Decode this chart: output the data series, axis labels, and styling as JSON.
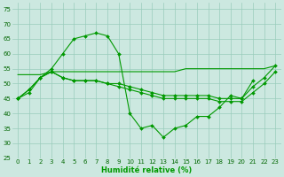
{
  "xlabel": "Humidité relative (%)",
  "background_color": "#cce8e0",
  "grid_color": "#99ccbb",
  "line_color": "#009900",
  "xlim": [
    -0.5,
    23.5
  ],
  "ylim": [
    25,
    77
  ],
  "yticks": [
    25,
    30,
    35,
    40,
    45,
    50,
    55,
    60,
    65,
    70,
    75
  ],
  "xticks": [
    0,
    1,
    2,
    3,
    4,
    5,
    6,
    7,
    8,
    9,
    10,
    11,
    12,
    13,
    14,
    15,
    16,
    17,
    18,
    19,
    20,
    21,
    22,
    23
  ],
  "line_peak_x": [
    0,
    1,
    2,
    3,
    4,
    5,
    6,
    7,
    8,
    9,
    10,
    11,
    12,
    13,
    14,
    15,
    16,
    17,
    18,
    19,
    20,
    21
  ],
  "line_peak_y": [
    45,
    48,
    52,
    55,
    60,
    65,
    66,
    67,
    66,
    60,
    40,
    35,
    36,
    32,
    35,
    36,
    39,
    39,
    42,
    46,
    45,
    51
  ],
  "line_flat_x": [
    0,
    1,
    2,
    3,
    4,
    5,
    6,
    7,
    8,
    9,
    10,
    11,
    12,
    13,
    14,
    15,
    16,
    17,
    18,
    19,
    20,
    21,
    22,
    23
  ],
  "line_flat_y": [
    53,
    53,
    53,
    54,
    54,
    54,
    54,
    54,
    54,
    54,
    54,
    54,
    54,
    54,
    54,
    55,
    55,
    55,
    55,
    55,
    55,
    55,
    55,
    56
  ],
  "line_mid1_x": [
    0,
    1,
    2,
    3,
    4,
    5,
    6,
    7,
    8,
    9,
    10,
    11,
    12,
    13,
    14,
    15,
    16,
    17,
    18,
    19,
    20,
    21,
    22,
    23
  ],
  "line_mid1_y": [
    45,
    48,
    52,
    54,
    52,
    51,
    51,
    51,
    50,
    50,
    49,
    48,
    47,
    46,
    46,
    46,
    46,
    46,
    45,
    45,
    45,
    49,
    52,
    56
  ],
  "line_mid2_x": [
    0,
    1,
    2,
    3,
    4,
    5,
    6,
    7,
    8,
    9,
    10,
    11,
    12,
    13,
    14,
    15,
    16,
    17,
    18,
    19,
    20,
    21,
    22,
    23
  ],
  "line_mid2_y": [
    45,
    47,
    52,
    54,
    52,
    51,
    51,
    51,
    50,
    49,
    48,
    47,
    46,
    45,
    45,
    45,
    45,
    45,
    44,
    44,
    44,
    47,
    50,
    54
  ],
  "xlabel_fontsize": 6,
  "tick_fontsize": 5,
  "linewidth": 0.8,
  "markersize": 2.0
}
